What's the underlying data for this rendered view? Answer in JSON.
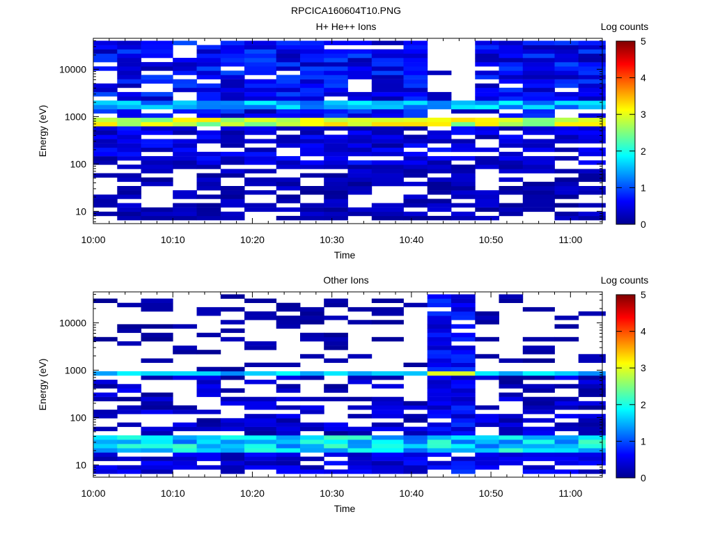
{
  "figure_title": "RPCICA160604T10.PNG",
  "chart_data": [
    {
      "type": "heatmap",
      "title": "H+ He++ Ions",
      "xlabel": "Time",
      "ylabel": "Energy (eV)",
      "x_ticks": [
        "10:00",
        "10:10",
        "10:20",
        "10:30",
        "10:40",
        "10:50",
        "11:00"
      ],
      "xlim": [
        "10:00",
        "11:04"
      ],
      "y_scale": "log",
      "y_ticks": [
        10,
        100,
        1000,
        10000
      ],
      "y_tick_labels": [
        "10",
        "100",
        "1000",
        "10000"
      ],
      "ylim": [
        5.5,
        45000
      ],
      "time_bins": [
        "10:00",
        "10:03",
        "10:06",
        "10:10",
        "10:13",
        "10:16",
        "10:19",
        "10:23",
        "10:26",
        "10:29",
        "10:32",
        "10:35",
        "10:39",
        "10:42",
        "10:45",
        "10:48",
        "10:51",
        "10:54",
        "10:58",
        "11:01"
      ],
      "colorbar": {
        "label": "Log counts",
        "ticks": [
          0,
          1,
          2,
          3,
          4,
          5
        ],
        "range": [
          0,
          5
        ]
      },
      "features": [
        {
          "label": "peak band",
          "energy_eV": [
            650,
            950
          ],
          "log_counts": 3.0
        },
        {
          "label": "secondary band",
          "energy_eV": [
            1600,
            2000
          ],
          "log_counts": 1.8
        }
      ],
      "gaps": [
        "10:42-10:48 above ~1000 eV"
      ]
    },
    {
      "type": "heatmap",
      "title": "Other Ions",
      "xlabel": "Time",
      "ylabel": "Energy (eV)",
      "x_ticks": [
        "10:00",
        "10:10",
        "10:20",
        "10:30",
        "10:40",
        "10:50",
        "11:00"
      ],
      "xlim": [
        "10:00",
        "11:04"
      ],
      "y_scale": "log",
      "y_ticks": [
        10,
        100,
        1000,
        10000
      ],
      "y_tick_labels": [
        "10",
        "100",
        "1000",
        "10000"
      ],
      "ylim": [
        5.5,
        45000
      ],
      "time_bins": [
        "10:00",
        "10:03",
        "10:06",
        "10:10",
        "10:13",
        "10:16",
        "10:19",
        "10:23",
        "10:26",
        "10:29",
        "10:32",
        "10:35",
        "10:39",
        "10:42",
        "10:45",
        "10:48",
        "10:51",
        "10:54",
        "10:58",
        "11:01"
      ],
      "colorbar": {
        "label": "Log counts",
        "ticks": [
          0,
          1,
          2,
          3,
          4,
          5
        ],
        "range": [
          0,
          5
        ]
      },
      "features": [
        {
          "label": "band",
          "energy_eV": [
            700,
            900
          ],
          "log_counts": 1.8
        },
        {
          "label": "low-energy band",
          "energy_eV": [
            20,
            40
          ],
          "log_counts": 2.0
        },
        {
          "label": "enhanced",
          "time": [
            "10:42",
            "10:48"
          ],
          "energy_eV": [
            10,
            45000
          ],
          "log_counts": 0.6
        }
      ]
    }
  ]
}
